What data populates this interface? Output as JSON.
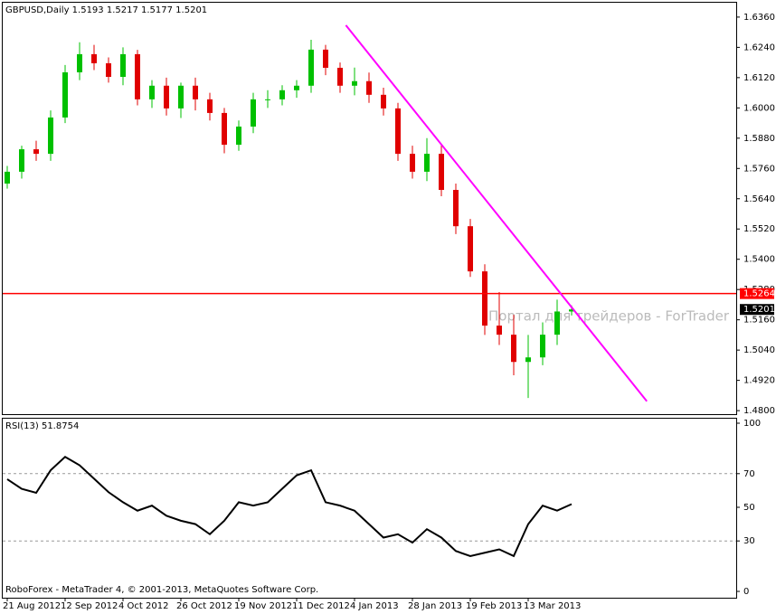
{
  "chart_data": [
    {
      "type": "candlestick",
      "title": "GBPUSD,Daily  1.5193 1.5217 1.5177 1.5201",
      "categories": [
        "21 Aug 2012",
        null,
        null,
        null,
        "12 Sep 2012",
        null,
        null,
        null,
        "4 Oct 2012",
        null,
        null,
        null,
        "26 Oct 2012",
        null,
        null,
        null,
        "19 Nov 2012",
        null,
        null,
        null,
        "11 Dec 2012",
        null,
        null,
        null,
        "4 Jan 2013",
        null,
        null,
        null,
        "28 Jan 2013",
        null,
        null,
        null,
        "19 Feb 2013",
        null,
        null,
        null,
        "13 Mar 2013",
        null,
        null,
        null
      ],
      "open": [
        1.57,
        1.5747,
        1.5836,
        1.5818,
        1.5962,
        1.6141,
        1.6213,
        1.6177,
        1.6123,
        1.6213,
        1.6034,
        1.6088,
        1.5998,
        1.6088,
        1.6034,
        1.598,
        1.5854,
        1.5926,
        1.6034,
        1.6034,
        1.607,
        1.6088,
        1.6231,
        1.6159,
        1.6088,
        1.6106,
        1.6052,
        1.5998,
        1.5818,
        1.5747,
        1.5818,
        1.5675,
        1.5531,
        1.5352,
        1.5137,
        1.5101,
        1.4993,
        1.5011,
        1.5101,
        1.5193
      ],
      "high": [
        1.577,
        1.585,
        1.587,
        1.599,
        1.617,
        1.626,
        1.625,
        1.62,
        1.624,
        1.623,
        1.611,
        1.612,
        1.61,
        1.612,
        1.606,
        1.6,
        1.595,
        1.606,
        1.607,
        1.609,
        1.611,
        1.627,
        1.625,
        1.618,
        1.616,
        1.614,
        1.608,
        1.602,
        1.585,
        1.588,
        1.585,
        1.57,
        1.556,
        1.538,
        1.527,
        1.518,
        1.51,
        1.515,
        1.524,
        1.5217
      ],
      "low": [
        1.568,
        1.572,
        1.579,
        1.579,
        1.594,
        1.611,
        1.615,
        1.61,
        1.609,
        1.601,
        1.6,
        1.597,
        1.596,
        1.599,
        1.595,
        1.582,
        1.583,
        1.59,
        1.6,
        1.601,
        1.604,
        1.606,
        1.613,
        1.606,
        1.605,
        1.602,
        1.597,
        1.579,
        1.572,
        1.571,
        1.565,
        1.55,
        1.533,
        1.51,
        1.506,
        1.494,
        1.485,
        1.498,
        1.506,
        1.5177
      ],
      "close": [
        1.5747,
        1.5836,
        1.5818,
        1.5962,
        1.6141,
        1.6213,
        1.6177,
        1.6123,
        1.6213,
        1.6034,
        1.6088,
        1.5998,
        1.6088,
        1.6034,
        1.598,
        1.5854,
        1.5926,
        1.6034,
        1.6034,
        1.607,
        1.6088,
        1.6231,
        1.6159,
        1.6088,
        1.6106,
        1.6052,
        1.5998,
        1.5818,
        1.5747,
        1.5818,
        1.5675,
        1.5531,
        1.5352,
        1.5137,
        1.5101,
        1.4993,
        1.5011,
        1.5101,
        1.5193,
        1.5201
      ],
      "up_color": "#00c000",
      "down_color": "#e00000",
      "ylim": [
        1.4786,
        1.6417
      ],
      "yticks": [
        {
          "value": 1.636,
          "label": "1.6360"
        },
        {
          "value": 1.624,
          "label": "1.6240"
        },
        {
          "value": 1.612,
          "label": "1.6120"
        },
        {
          "value": 1.6,
          "label": "1.6000"
        },
        {
          "value": 1.588,
          "label": "1.5880"
        },
        {
          "value": 1.576,
          "label": "1.5760"
        },
        {
          "value": 1.564,
          "label": "1.5640"
        },
        {
          "value": 1.552,
          "label": "1.5520"
        },
        {
          "value": 1.54,
          "label": "1.5400"
        },
        {
          "value": 1.528,
          "label": "1.5280"
        },
        {
          "value": 1.516,
          "label": "1.5160"
        },
        {
          "value": 1.504,
          "label": "1.5040"
        },
        {
          "value": 1.492,
          "label": "1.4920"
        },
        {
          "value": 1.48,
          "label": "1.4800"
        }
      ],
      "hline": {
        "value": 1.5264,
        "label": "1.5264",
        "color": "#ff0000"
      },
      "last_price": {
        "value": 1.5201,
        "label": "1.5201"
      },
      "trendline": {
        "x": [
          23.4,
          44.2
        ],
        "y": [
          1.6328,
          1.4837
        ],
        "color": "#ff00ff"
      }
    },
    {
      "type": "line",
      "title": "RSI(13) 51.8754",
      "values": [
        66.7,
        61,
        58.6,
        72,
        80,
        75,
        67,
        59,
        53,
        48,
        51,
        45,
        42,
        40,
        34,
        42,
        53,
        51,
        53,
        61,
        69,
        72,
        53,
        51,
        48,
        40,
        32,
        34,
        29,
        37,
        32,
        24,
        21,
        23,
        25,
        21,
        40,
        51,
        48,
        51.8754
      ],
      "color": "#000000",
      "ylim": [
        0,
        100
      ],
      "yticks": [
        0,
        30,
        50,
        70,
        100
      ],
      "levels": [
        30,
        70
      ]
    }
  ],
  "footer": "RoboForex - MetaTrader 4, © 2001-2013, MetaQuotes Software Corp.",
  "watermark": "Портал для трейдеров - ForTrader"
}
